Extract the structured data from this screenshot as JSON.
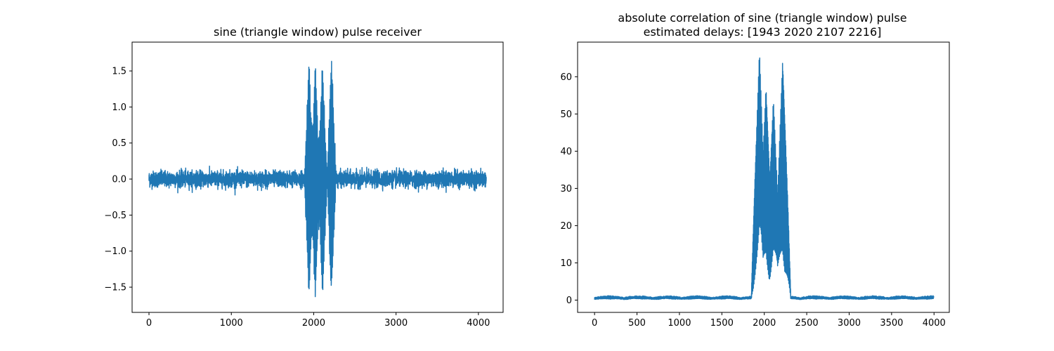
{
  "chart_data": [
    {
      "type": "line",
      "title": "sine (triangle window) pulse receiver",
      "xlabel": "",
      "ylabel": "",
      "xlim": [
        -205,
        4300
      ],
      "ylim": [
        -1.85,
        1.9
      ],
      "x_ticks": [
        0,
        1000,
        2000,
        3000,
        4000
      ],
      "y_ticks": [
        -1.5,
        -1.0,
        -0.5,
        0.0,
        0.5,
        1.0,
        1.5
      ],
      "x_tick_labels": [
        "0",
        "1000",
        "2000",
        "3000",
        "4000"
      ],
      "y_tick_labels": [
        "−1.5",
        "−1.0",
        "−0.5",
        "0.0",
        "0.5",
        "1.0",
        "1.5"
      ],
      "grid": false,
      "series": [
        {
          "color": "#1f77b4",
          "description_samples": 4096,
          "noise_band": [
            -0.18,
            0.18
          ],
          "pulses": [
            {
              "center": 1943,
              "peak_pos": 1.68,
              "peak_neg": -1.72
            },
            {
              "center": 2020,
              "peak_pos": 1.7,
              "peak_neg": -1.6
            },
            {
              "center": 2107,
              "peak_pos": 1.66,
              "peak_neg": -1.65
            },
            {
              "center": 2216,
              "peak_pos": 1.75,
              "peak_neg": -1.67
            }
          ]
        }
      ]
    },
    {
      "type": "line",
      "title": "absolute correlation of sine (triangle window) pulse\nestimated delays: [1943 2020 2107 2216]",
      "xlabel": "",
      "ylabel": "",
      "xlim": [
        -200,
        4180
      ],
      "ylim": [
        -3.3,
        69.3
      ],
      "x_ticks": [
        0,
        500,
        1000,
        1500,
        2000,
        2500,
        3000,
        3500,
        4000
      ],
      "y_ticks": [
        0,
        10,
        20,
        30,
        40,
        50,
        60
      ],
      "x_tick_labels": [
        "0",
        "500",
        "1000",
        "1500",
        "2000",
        "2500",
        "3000",
        "3500",
        "4000"
      ],
      "y_tick_labels": [
        "0",
        "10",
        "20",
        "30",
        "40",
        "50",
        "60"
      ],
      "grid": false,
      "series": [
        {
          "color": "#1f77b4",
          "x_range": [
            0,
            3996
          ],
          "baseline_max": 1.5,
          "peaks": [
            {
              "center": 1943,
              "value": 66
            },
            {
              "center": 2020,
              "value": 57
            },
            {
              "center": 2107,
              "value": 53.5
            },
            {
              "center": 2216,
              "value": 64
            }
          ]
        }
      ]
    }
  ]
}
